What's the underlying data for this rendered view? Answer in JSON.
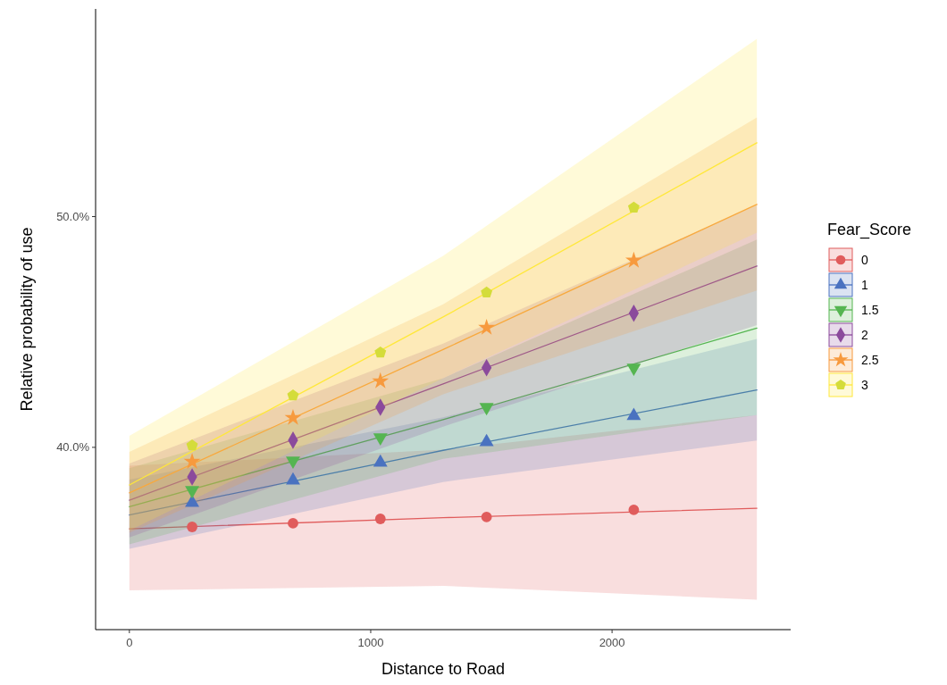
{
  "chart_data": {
    "type": "line",
    "xlabel": "Distance to Road",
    "ylabel": "Relative probability of use",
    "legend_title": "Fear_Score",
    "legend": "right",
    "xlim": [
      -140,
      2740
    ],
    "xticks": [
      0,
      1000,
      2000
    ],
    "ylim": [
      32.1,
      59.0
    ],
    "yticks": [
      {
        "value": 40,
        "label": "40.0%"
      },
      {
        "value": 50,
        "label": "50.0%"
      }
    ],
    "series": [
      {
        "name": "0",
        "color": "#e05c5c",
        "x": [
          0,
          1300,
          2600
        ],
        "values": [
          36.47,
          36.95,
          37.36
        ],
        "lower": [
          33.8,
          34.0,
          33.4
        ],
        "upper": [
          39.2,
          39.9,
          41.4
        ]
      },
      {
        "name": "1",
        "color": "#4a72c0",
        "x": [
          0,
          1300,
          2600
        ],
        "values": [
          37.07,
          39.87,
          42.49
        ],
        "lower": [
          35.6,
          38.5,
          40.3
        ],
        "upper": [
          38.6,
          41.3,
          44.7
        ]
      },
      {
        "name": "1.5",
        "color": "#55b551",
        "x": [
          0,
          1300,
          2600
        ],
        "values": [
          37.43,
          41.2,
          45.17
        ],
        "lower": [
          35.8,
          39.5,
          41.4
        ],
        "upper": [
          39.1,
          43.0,
          49.0
        ]
      },
      {
        "name": "2",
        "color": "#8b4a9c",
        "x": [
          0,
          1300,
          2600
        ],
        "values": [
          37.71,
          42.75,
          47.86
        ],
        "lower": [
          36.1,
          40.9,
          45.3
        ],
        "upper": [
          39.3,
          44.5,
          50.5
        ]
      },
      {
        "name": "2.5",
        "color": "#f79a3e",
        "x": [
          0,
          1300,
          2600
        ],
        "values": [
          38.03,
          44.24,
          50.53
        ],
        "lower": [
          36.3,
          42.3,
          46.8
        ],
        "upper": [
          39.8,
          46.2,
          54.3
        ]
      },
      {
        "name": "3",
        "color": "#ffe83a",
        "x": [
          0,
          1300,
          2600
        ],
        "values": [
          38.37,
          45.65,
          53.2
        ],
        "lower": [
          36.4,
          43.0,
          49.3
        ],
        "upper": [
          40.5,
          48.3,
          57.7
        ]
      },
      {
        "type": "scatter",
        "color": "#e05c5c",
        "marker": "circle",
        "x": [
          260,
          678,
          1040,
          1480,
          2090
        ],
        "values": [
          36.55,
          36.71,
          36.9,
          36.98,
          37.29
        ]
      },
      {
        "type": "scatter",
        "color": "#4a72c0",
        "marker": "triangle",
        "x": [
          260,
          678,
          1040,
          1480,
          2090
        ],
        "values": [
          37.6,
          38.57,
          39.34,
          40.23,
          41.36
        ]
      },
      {
        "type": "scatter",
        "color": "#55b551",
        "marker": "triangle-down",
        "x": [
          260,
          678,
          1040,
          1480,
          2090
        ],
        "values": [
          38.14,
          39.42,
          40.43,
          41.74,
          43.45
        ]
      },
      {
        "type": "scatter",
        "color": "#8b4a9c",
        "marker": "diamond",
        "x": [
          260,
          678,
          1040,
          1480,
          2090
        ],
        "values": [
          38.72,
          40.31,
          41.74,
          43.45,
          45.81
        ]
      },
      {
        "type": "scatter",
        "color": "#f79a3e",
        "marker": "star",
        "x": [
          260,
          678,
          1040,
          1480,
          2090
        ],
        "values": [
          39.38,
          41.28,
          42.87,
          45.19,
          48.1
        ]
      },
      {
        "type": "scatter",
        "color": "#d4dc3a",
        "x": [
          260,
          678,
          1040,
          1480,
          2090
        ],
        "values": [
          40.08,
          42.25,
          44.11,
          46.71,
          50.39
        ]
      }
    ]
  }
}
